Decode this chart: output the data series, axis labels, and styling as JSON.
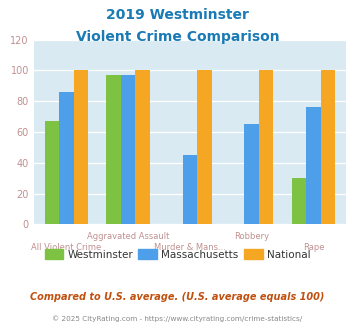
{
  "title_line1": "2019 Westminster",
  "title_line2": "Violent Crime Comparison",
  "categories": [
    "All Violent Crime",
    "Aggravated Assault",
    "Murder & Mans...",
    "Robbery",
    "Rape"
  ],
  "series": {
    "Westminster": [
      67,
      97,
      0,
      0,
      30
    ],
    "Massachusetts": [
      86,
      97,
      45,
      65,
      76
    ],
    "National": [
      100,
      100,
      100,
      100,
      100
    ]
  },
  "colors": {
    "Westminster": "#7dc242",
    "Massachusetts": "#4d9fea",
    "National": "#f5a623"
  },
  "ylim": [
    0,
    120
  ],
  "yticks": [
    0,
    20,
    40,
    60,
    80,
    100,
    120
  ],
  "bg_color": "#daeaf2",
  "title_color": "#1a7ab5",
  "footer_text": "Compared to U.S. average. (U.S. average equals 100)",
  "copyright_text": "© 2025 CityRating.com - https://www.cityrating.com/crime-statistics/",
  "footer_color": "#c05010",
  "copyright_color": "#888888",
  "tick_label_color": "#c09090"
}
